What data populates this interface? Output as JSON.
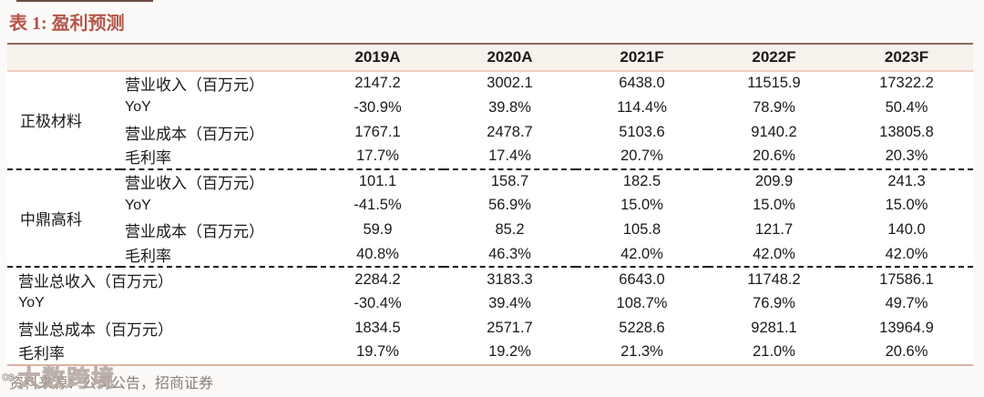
{
  "page": {
    "title": "表 1: 盈利预测",
    "source_note": "资料来源：公司公告，招商证券",
    "watermark_logo": "∞",
    "watermark_text": "大数跨境"
  },
  "table": {
    "columns": [
      "2019A",
      "2020A",
      "2021F",
      "2022F",
      "2023F"
    ],
    "groups": [
      {
        "name": "正极材料",
        "rows": [
          {
            "label": "营业收入（百万元）",
            "values": [
              "2147.2",
              "3002.1",
              "6438.0",
              "11515.9",
              "17322.2"
            ]
          },
          {
            "label": "YoY",
            "values": [
              "-30.9%",
              "39.8%",
              "114.4%",
              "78.9%",
              "50.4%"
            ]
          },
          {
            "label": "营业成本（百万元）",
            "values": [
              "1767.1",
              "2478.7",
              "5103.6",
              "9140.2",
              "13805.8"
            ]
          },
          {
            "label": "毛利率",
            "values": [
              "17.7%",
              "17.4%",
              "20.7%",
              "20.6%",
              "20.3%"
            ]
          }
        ]
      },
      {
        "name": "中鼎高科",
        "rows": [
          {
            "label": "营业收入（百万元）",
            "values": [
              "101.1",
              "158.7",
              "182.5",
              "209.9",
              "241.3"
            ]
          },
          {
            "label": "YoY",
            "values": [
              "-41.5%",
              "56.9%",
              "15.0%",
              "15.0%",
              "15.0%"
            ]
          },
          {
            "label": "营业成本（百万元）",
            "values": [
              "59.9",
              "85.2",
              "105.8",
              "121.7",
              "140.0"
            ]
          },
          {
            "label": "毛利率",
            "values": [
              "40.8%",
              "46.3%",
              "42.0%",
              "42.0%",
              "42.0%"
            ]
          }
        ]
      }
    ],
    "totals": [
      {
        "label": "营业总收入（百万元）",
        "values": [
          "2284.2",
          "3183.3",
          "6643.0",
          "11748.2",
          "17586.1"
        ]
      },
      {
        "label": "YoY",
        "values": [
          "-30.4%",
          "39.4%",
          "108.7%",
          "76.9%",
          "49.7%"
        ]
      },
      {
        "label": "营业总成本（百万元）",
        "values": [
          "1834.5",
          "2571.7",
          "5228.6",
          "9281.1",
          "13964.9"
        ]
      },
      {
        "label": "毛利率",
        "values": [
          "19.7%",
          "19.2%",
          "21.3%",
          "21.0%",
          "20.6%"
        ]
      }
    ]
  },
  "colors": {
    "page_bg": "#fcfaf8",
    "text": "#1a1a1a",
    "title_accent": "#b5564a",
    "table_top_border": "#8f6a5a",
    "header_bg": "#f7f1ec",
    "header_underline": "#eecdbd",
    "bottom_border": "#dcb3a6",
    "separator": "#1a1a1a",
    "source_text": "#8a7e77",
    "watermark": "#b3a69e"
  }
}
